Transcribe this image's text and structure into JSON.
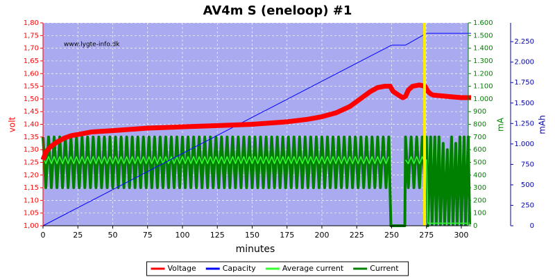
{
  "chart_data": {
    "type": "line",
    "title": "AV4m S (eneloop) #1",
    "watermark": "www.lygte-info.dk",
    "xlabel": "minutes",
    "xlim": [
      0,
      305
    ],
    "xticks": [
      0,
      25,
      50,
      75,
      100,
      125,
      150,
      175,
      200,
      225,
      250,
      275,
      300
    ],
    "ylabel": "volt",
    "ylim": [
      1.0,
      1.8
    ],
    "yticks": [
      {
        "value": 1.0,
        "label": "1,00"
      },
      {
        "value": 1.05,
        "label": "1,05"
      },
      {
        "value": 1.1,
        "label": "1,10"
      },
      {
        "value": 1.15,
        "label": "1,15"
      },
      {
        "value": 1.2,
        "label": "1,20"
      },
      {
        "value": 1.25,
        "label": "1,25"
      },
      {
        "value": 1.3,
        "label": "1,30"
      },
      {
        "value": 1.35,
        "label": "1,35"
      },
      {
        "value": 1.4,
        "label": "1,40"
      },
      {
        "value": 1.45,
        "label": "1,45"
      },
      {
        "value": 1.5,
        "label": "1,50"
      },
      {
        "value": 1.55,
        "label": "1,55"
      },
      {
        "value": 1.6,
        "label": "1,60"
      },
      {
        "value": 1.65,
        "label": "1,65"
      },
      {
        "value": 1.7,
        "label": "1,70"
      },
      {
        "value": 1.75,
        "label": "1,75"
      },
      {
        "value": 1.8,
        "label": "1,80"
      }
    ],
    "y2label": "mA",
    "y2lim": [
      0,
      1600
    ],
    "y2ticks": [
      0,
      100,
      200,
      300,
      400,
      500,
      600,
      700,
      800,
      900,
      {
        "value": 1000,
        "label": "1.000"
      },
      {
        "value": 1100,
        "label": "1.100"
      },
      {
        "value": 1200,
        "label": "1.200"
      },
      {
        "value": 1300,
        "label": "1.300"
      },
      {
        "value": 1400,
        "label": "1.400"
      },
      {
        "value": 1500,
        "label": "1.500"
      },
      {
        "value": 1600,
        "label": "1.600"
      }
    ],
    "y3label": "mAh",
    "y3lim": [
      0,
      2480
    ],
    "y3ticks": [
      0,
      250,
      500,
      750,
      {
        "value": 1000,
        "label": "1.000"
      },
      {
        "value": 1250,
        "label": "1.250"
      },
      {
        "value": 1500,
        "label": "1.500"
      },
      {
        "value": 1750,
        "label": "1.750"
      },
      {
        "value": 2000,
        "label": "2.000"
      },
      {
        "value": 2250,
        "label": "2.250"
      }
    ],
    "grid": true,
    "legend": "bottom",
    "series": [
      {
        "name": "Voltage",
        "color": "#ff0000",
        "axis": "y",
        "x": [
          0,
          2,
          5,
          10,
          15,
          20,
          25,
          35,
          50,
          75,
          100,
          125,
          150,
          175,
          190,
          200,
          210,
          220,
          230,
          235,
          240,
          245,
          249,
          251,
          255,
          258,
          260,
          262,
          265,
          270,
          274,
          276,
          278,
          280,
          290,
          300,
          307
        ],
        "values": [
          1.26,
          1.29,
          1.31,
          1.33,
          1.345,
          1.355,
          1.36,
          1.37,
          1.375,
          1.385,
          1.39,
          1.395,
          1.4,
          1.41,
          1.42,
          1.43,
          1.445,
          1.47,
          1.51,
          1.53,
          1.545,
          1.55,
          1.55,
          1.53,
          1.515,
          1.505,
          1.51,
          1.535,
          1.55,
          1.555,
          1.55,
          1.53,
          1.52,
          1.515,
          1.51,
          1.505,
          1.505
        ]
      },
      {
        "name": "Capacity",
        "color": "#0000ff",
        "axis": "y3",
        "x": [
          0,
          250,
          260,
          275,
          307
        ],
        "values": [
          0,
          2208,
          2208,
          2352,
          2352
        ]
      },
      {
        "name": "Average current",
        "color": "#33ff33",
        "axis": "y2",
        "x": [
          0,
          2,
          4,
          6,
          8,
          10,
          12,
          14,
          16,
          18,
          20,
          22,
          24,
          26,
          28,
          30,
          32,
          34,
          36,
          38,
          40,
          42,
          44,
          46,
          48,
          50,
          52,
          54,
          56,
          58,
          60,
          62,
          64,
          66,
          68,
          70,
          72,
          74,
          76,
          78,
          80,
          82,
          84,
          86,
          88,
          90,
          92,
          94,
          96,
          98,
          100,
          102,
          104,
          106,
          108,
          110,
          112,
          114,
          116,
          118,
          120,
          122,
          124,
          126,
          128,
          130,
          132,
          134,
          136,
          138,
          140,
          142,
          144,
          146,
          148,
          150,
          152,
          154,
          156,
          158,
          160,
          162,
          164,
          166,
          168,
          170,
          172,
          174,
          176,
          178,
          180,
          182,
          184,
          186,
          188,
          190,
          192,
          194,
          196,
          198,
          200,
          202,
          204,
          206,
          208,
          210,
          212,
          214,
          216,
          218,
          220,
          222,
          224,
          226,
          228,
          230,
          232,
          234,
          236,
          238,
          240,
          242,
          244,
          246,
          248,
          254,
          260,
          262,
          264,
          266,
          268,
          270,
          272,
          274,
          275,
          276,
          306
        ],
        "values": [
          545,
          490,
          545,
          490,
          545,
          490,
          545,
          490,
          545,
          490,
          545,
          490,
          545,
          490,
          545,
          490,
          545,
          490,
          545,
          490,
          545,
          490,
          545,
          490,
          545,
          490,
          545,
          490,
          545,
          490,
          545,
          490,
          545,
          490,
          545,
          490,
          545,
          490,
          545,
          490,
          545,
          490,
          545,
          490,
          545,
          490,
          545,
          490,
          545,
          490,
          545,
          490,
          545,
          490,
          545,
          490,
          545,
          490,
          545,
          490,
          545,
          490,
          545,
          490,
          545,
          490,
          545,
          490,
          545,
          490,
          545,
          490,
          545,
          490,
          545,
          490,
          545,
          490,
          545,
          490,
          545,
          490,
          545,
          490,
          545,
          490,
          545,
          490,
          545,
          490,
          545,
          490,
          545,
          490,
          545,
          490,
          545,
          490,
          545,
          490,
          545,
          490,
          545,
          490,
          545,
          490,
          545,
          490,
          545,
          490,
          545,
          490,
          545,
          490,
          545,
          490,
          545,
          490,
          545,
          490,
          545,
          490,
          545,
          490,
          545,
          null,
          520,
          490,
          545,
          490,
          545,
          490,
          545,
          490,
          520,
          20,
          20
        ]
      },
      {
        "name": "Current",
        "color": "#008000",
        "axis": "y2",
        "x": [
          0,
          2,
          4,
          6,
          8,
          10,
          12,
          14,
          16,
          18,
          20,
          22,
          24,
          26,
          28,
          30,
          32,
          34,
          36,
          38,
          40,
          42,
          44,
          46,
          48,
          50,
          52,
          54,
          56,
          58,
          60,
          62,
          64,
          66,
          68,
          70,
          72,
          74,
          76,
          78,
          80,
          82,
          84,
          86,
          88,
          90,
          92,
          94,
          96,
          98,
          100,
          102,
          104,
          106,
          108,
          110,
          112,
          114,
          116,
          118,
          120,
          122,
          124,
          126,
          128,
          130,
          132,
          134,
          136,
          138,
          140,
          142,
          144,
          146,
          148,
          150,
          152,
          154,
          156,
          158,
          160,
          162,
          164,
          166,
          168,
          170,
          172,
          174,
          176,
          178,
          180,
          182,
          184,
          186,
          188,
          190,
          192,
          194,
          196,
          198,
          200,
          202,
          204,
          206,
          208,
          210,
          212,
          214,
          216,
          218,
          220,
          222,
          224,
          226,
          228,
          230,
          232,
          234,
          236,
          238,
          240,
          242,
          244,
          246,
          248,
          249.5,
          259.5,
          260,
          262,
          264,
          266,
          268,
          270,
          272,
          274,
          275,
          276,
          278,
          279,
          281,
          282,
          284,
          285,
          287,
          288,
          290,
          291,
          293,
          294,
          296,
          297,
          299,
          300,
          302,
          303,
          305,
          306
        ],
        "values": [
          700,
          300,
          700,
          300,
          700,
          300,
          700,
          300,
          700,
          300,
          700,
          300,
          700,
          300,
          700,
          300,
          700,
          300,
          700,
          300,
          700,
          300,
          700,
          300,
          700,
          300,
          700,
          300,
          700,
          300,
          700,
          300,
          700,
          300,
          700,
          300,
          700,
          300,
          700,
          300,
          700,
          300,
          700,
          300,
          700,
          300,
          700,
          300,
          700,
          300,
          700,
          300,
          700,
          300,
          700,
          300,
          700,
          300,
          700,
          300,
          700,
          300,
          700,
          300,
          700,
          300,
          700,
          300,
          700,
          300,
          700,
          300,
          700,
          300,
          700,
          300,
          700,
          300,
          700,
          300,
          700,
          300,
          700,
          300,
          700,
          300,
          700,
          300,
          700,
          300,
          700,
          300,
          700,
          300,
          700,
          300,
          700,
          300,
          700,
          300,
          700,
          300,
          700,
          300,
          700,
          300,
          700,
          300,
          700,
          300,
          700,
          300,
          700,
          300,
          700,
          300,
          700,
          300,
          700,
          300,
          700,
          300,
          700,
          300,
          700,
          0,
          0,
          700,
          300,
          700,
          300,
          700,
          300,
          700,
          300,
          700,
          0,
          700,
          10,
          700,
          10,
          700,
          10,
          650,
          10,
          600,
          10,
          700,
          10,
          650,
          10,
          700,
          10,
          700,
          10,
          700,
          10
        ]
      }
    ]
  }
}
